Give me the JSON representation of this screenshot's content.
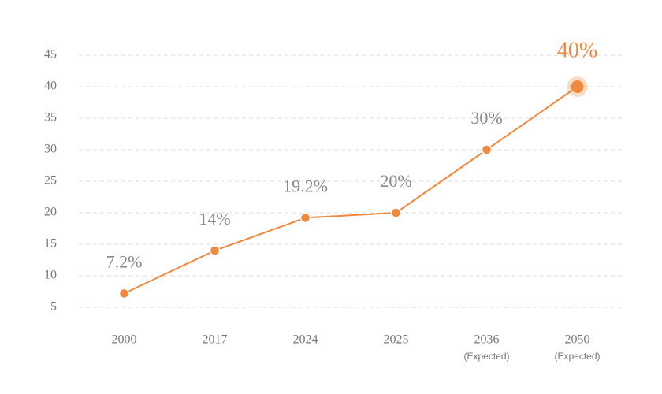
{
  "chart_data": {
    "type": "line",
    "categories": [
      "2000",
      "2017",
      "2024",
      "2025",
      "2036",
      "2050"
    ],
    "category_notes": [
      null,
      null,
      null,
      null,
      "(Expected)",
      "(Expected)"
    ],
    "values": [
      7.2,
      14,
      19.2,
      20,
      30,
      40
    ],
    "value_labels": [
      "7.2%",
      "14%",
      "19.2%",
      "20%",
      "30%",
      "40%"
    ],
    "color": "#f0883e",
    "highlight_index": 5,
    "ylim": [
      5,
      45
    ],
    "yticks": [
      5,
      10,
      15,
      20,
      25,
      30,
      35,
      40,
      45
    ],
    "grid": true
  }
}
